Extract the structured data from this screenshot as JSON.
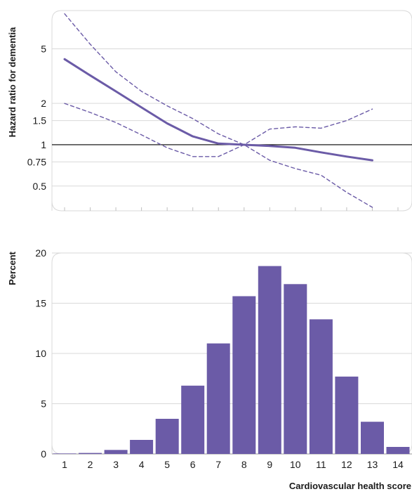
{
  "colors": {
    "accent": "#6b5ba7",
    "grid": "#d9d9d9",
    "reference_line": "#000000",
    "text": "#1a1a1a"
  },
  "chart_data": [
    {
      "type": "line",
      "ylabel": "Hazard ratio for dementia",
      "y_scale": "log",
      "yticks": [
        0.5,
        0.75,
        1,
        1.5,
        2,
        5
      ],
      "ytick_labels": [
        "0.5",
        "0.75",
        "1",
        "1.5",
        "2",
        "5"
      ],
      "reference_line_y": 1,
      "x": [
        1,
        2,
        3,
        4,
        5,
        6,
        7,
        8,
        9,
        10,
        11,
        12,
        13,
        14
      ],
      "ylim": [
        0.33,
        9.5
      ],
      "grid": true,
      "series": [
        {
          "role": "estimate",
          "style": "solid",
          "values": [
            4.2,
            3.2,
            2.45,
            1.87,
            1.43,
            1.15,
            1.02,
            1.0,
            0.98,
            0.95,
            0.88,
            0.82,
            0.77,
            null
          ]
        },
        {
          "role": "upper-ci",
          "style": "dashed",
          "values": [
            9.0,
            5.4,
            3.4,
            2.45,
            1.92,
            1.55,
            1.2,
            1.0,
            0.77,
            0.67,
            0.6,
            0.45,
            0.35,
            null
          ]
        },
        {
          "role": "lower-ci",
          "style": "dashed",
          "values": [
            2.0,
            1.72,
            1.45,
            1.18,
            0.95,
            0.82,
            0.82,
            1.0,
            1.3,
            1.35,
            1.32,
            1.5,
            1.82,
            null
          ]
        }
      ]
    },
    {
      "type": "bar",
      "xlabel": "Cardiovascular health score",
      "ylabel": "Percent",
      "categories": [
        "1",
        "2",
        "3",
        "4",
        "5",
        "6",
        "7",
        "8",
        "9",
        "10",
        "11",
        "12",
        "13",
        "14"
      ],
      "values": [
        0.05,
        0.1,
        0.4,
        1.4,
        3.5,
        6.8,
        11.0,
        15.7,
        18.7,
        16.9,
        13.4,
        7.7,
        3.2,
        0.7
      ],
      "ylim": [
        0,
        20
      ],
      "yticks": [
        0,
        5,
        10,
        15,
        20
      ],
      "ytick_labels": [
        "0",
        "5",
        "10",
        "15",
        "20"
      ],
      "grid": true
    }
  ]
}
